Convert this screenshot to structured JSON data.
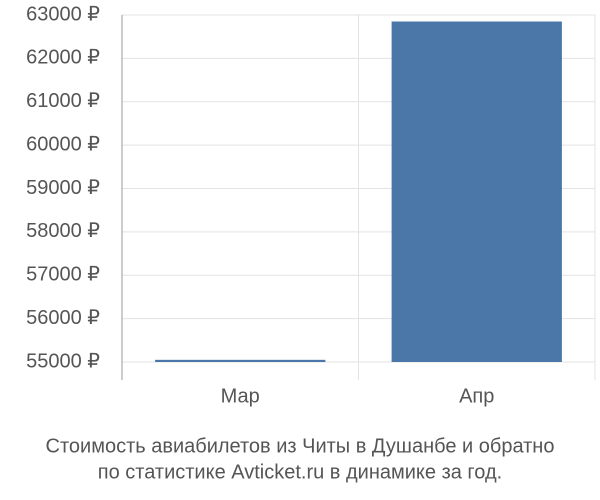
{
  "chart_data": {
    "type": "bar",
    "title": [
      "Стоимость авиабилетов из Читы в Душанбе и обратно",
      "по статистике Avticket.ru в динамике за год."
    ],
    "categories": [
      "Мар",
      "Апр"
    ],
    "values": [
      55050,
      62850
    ],
    "color": "#4a76a8",
    "ylim": [
      55000,
      63000
    ],
    "yticks": [
      {
        "value": 55000,
        "label": "55000 ₽"
      },
      {
        "value": 56000,
        "label": "56000 ₽"
      },
      {
        "value": 57000,
        "label": "57000 ₽"
      },
      {
        "value": 58000,
        "label": "58000 ₽"
      },
      {
        "value": 59000,
        "label": "59000 ₽"
      },
      {
        "value": 60000,
        "label": "60000 ₽"
      },
      {
        "value": 61000,
        "label": "61000 ₽"
      },
      {
        "value": 62000,
        "label": "62000 ₽"
      },
      {
        "value": 63000,
        "label": "63000 ₽"
      }
    ],
    "grid": true
  }
}
